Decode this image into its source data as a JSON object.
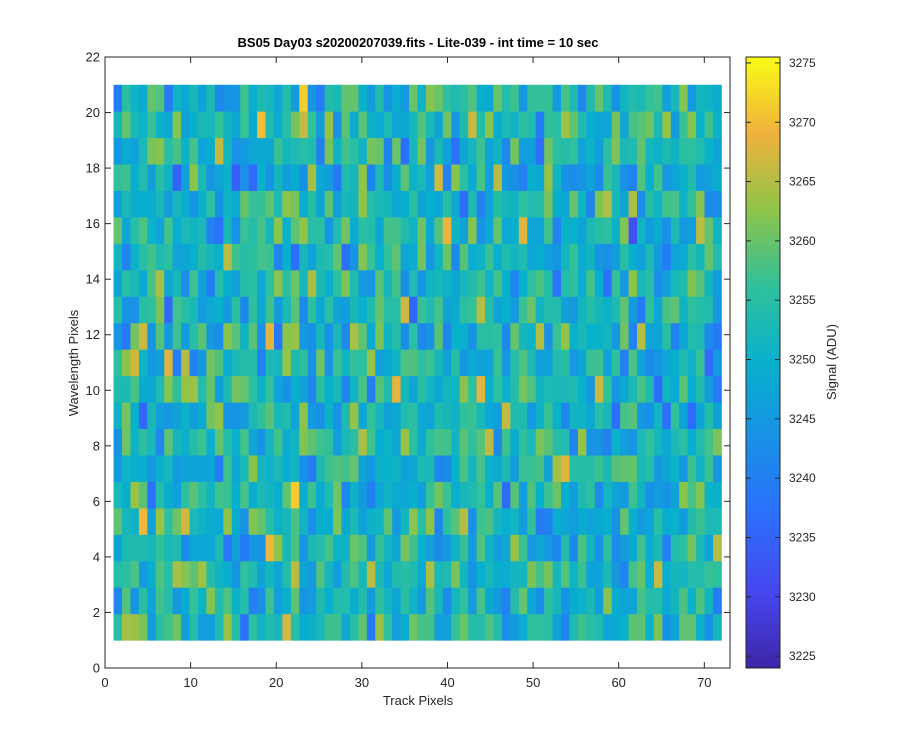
{
  "chart_data": {
    "type": "heatmap",
    "title": "BS05 Day03  s20200207039.fits - Lite-039 - int time = 10 sec",
    "xlabel": "Track Pixels",
    "ylabel": "Wavelength Pixels",
    "xlim": [
      0,
      73
    ],
    "ylim": [
      0,
      22
    ],
    "x_ticks": [
      0,
      10,
      20,
      30,
      40,
      50,
      60,
      70
    ],
    "y_ticks": [
      0,
      2,
      4,
      6,
      8,
      10,
      12,
      14,
      16,
      18,
      20,
      22
    ],
    "x_tick_labels": [
      "0",
      "10",
      "20",
      "30",
      "40",
      "50",
      "60",
      "70"
    ],
    "y_tick_labels": [
      "0",
      "2",
      "4",
      "6",
      "8",
      "10",
      "12",
      "14",
      "16",
      "18",
      "20",
      "22"
    ],
    "grid": false,
    "data_extent": {
      "track_pixels": [
        1,
        72
      ],
      "wavelength_pixels": [
        1,
        21
      ]
    },
    "colormap": "parula",
    "colorbar": {
      "label": "Signal (ADU)",
      "range": [
        3224,
        3275.5
      ],
      "ticks": [
        3225,
        3230,
        3235,
        3240,
        3245,
        3250,
        3255,
        3260,
        3265,
        3270,
        3275
      ],
      "tick_labels": [
        "3225",
        "3230",
        "3235",
        "3240",
        "3245",
        "3250",
        "3255",
        "3260",
        "3265",
        "3270",
        "3275"
      ],
      "position": "right"
    },
    "value_summary": {
      "typical_min": 3235,
      "typical_max": 3270,
      "mean": 3252,
      "note": "pixel-level noise field; individual cell values are random-looking around ~3252 ADU"
    }
  }
}
